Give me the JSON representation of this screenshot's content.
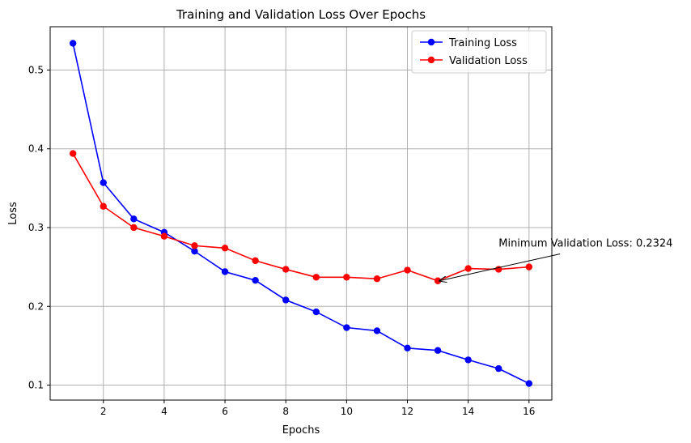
{
  "chart_data": {
    "type": "line",
    "title": "Training and Validation Loss Over Epochs",
    "xlabel": "Epochs",
    "ylabel": "Loss",
    "xlim": [
      0.25,
      16.75
    ],
    "ylim": [
      0.081,
      0.555
    ],
    "xticks": [
      2,
      4,
      6,
      8,
      10,
      12,
      14,
      16
    ],
    "yticks": [
      0.1,
      0.2,
      0.3,
      0.4,
      0.5
    ],
    "grid": true,
    "legend_position": "top-right",
    "x": [
      1,
      2,
      3,
      4,
      5,
      6,
      7,
      8,
      9,
      10,
      11,
      12,
      13,
      14,
      15,
      16
    ],
    "series": [
      {
        "name": "Training Loss",
        "color": "#0000ff",
        "marker": "circle",
        "values": [
          0.534,
          0.357,
          0.311,
          0.294,
          0.27,
          0.244,
          0.233,
          0.208,
          0.193,
          0.173,
          0.169,
          0.147,
          0.144,
          0.132,
          0.121,
          0.102
        ]
      },
      {
        "name": "Validation Loss",
        "color": "#ff0000",
        "marker": "circle",
        "values": [
          0.394,
          0.327,
          0.3,
          0.289,
          0.277,
          0.274,
          0.258,
          0.247,
          0.237,
          0.237,
          0.235,
          0.246,
          0.2324,
          0.248,
          0.247,
          0.25
        ]
      }
    ],
    "annotation": {
      "text": "Minimum Validation Loss: 0.2324",
      "point": [
        13,
        0.2324
      ],
      "text_at": [
        15,
        0.28
      ]
    }
  }
}
